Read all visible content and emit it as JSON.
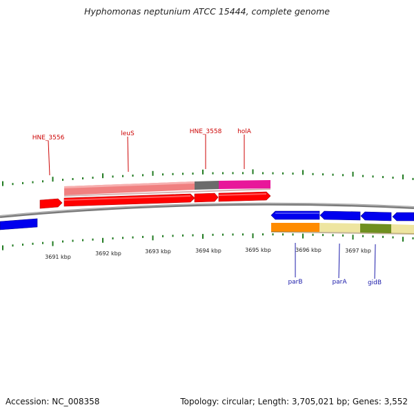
{
  "title": "Hyphomonas neptunium ATCC 15444, complete genome",
  "colors": {
    "background": "#ffffff",
    "backbone": "#8a8a8a",
    "tick": "#1f7a1f",
    "gene_forward": "#ff0000",
    "gene_reverse": "#0000ee",
    "label_forward": "#cc0000",
    "label_reverse": "#1a1aaa"
  },
  "scale_labels": [
    "3691 kbp",
    "3692 kbp",
    "3693 kbp",
    "3694 kbp",
    "3695 kbp",
    "3696 kbp",
    "3697 kbp"
  ],
  "gene_labels": [
    {
      "text": "HNE_3556",
      "color": "#cc0000"
    },
    {
      "text": "leuS",
      "color": "#cc0000"
    },
    {
      "text": "HNE_3558",
      "color": "#cc0000"
    },
    {
      "text": "holA",
      "color": "#cc0000"
    },
    {
      "text": "parB",
      "color": "#1a1aaa"
    },
    {
      "text": "parA",
      "color": "#1a1aaa"
    },
    {
      "text": "gidB",
      "color": "#1a1aaa"
    }
  ],
  "footer": {
    "accession": "Accession: NC_008358",
    "summary": "Topology: circular; Length: 3,705,021 bp; Genes: 3,552"
  }
}
